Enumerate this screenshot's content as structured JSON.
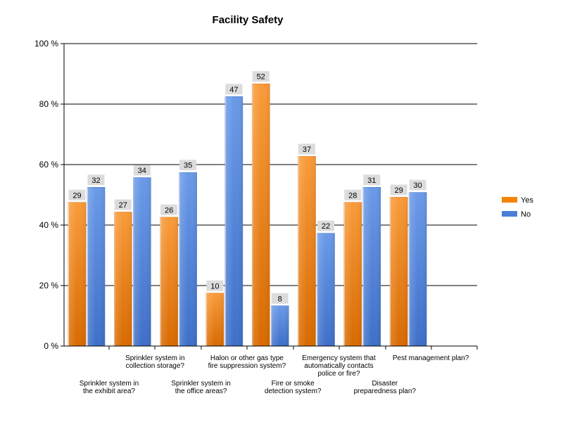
{
  "chart_data": {
    "type": "bar",
    "title": "Facility Safety",
    "xlabel": "",
    "ylabel": "",
    "ylim": [
      0,
      100
    ],
    "y_tick_suffix": " %",
    "y_ticks": [
      0,
      20,
      40,
      60,
      80,
      100
    ],
    "grid": true,
    "legend_position": "right",
    "categories": [
      "Sprinkler system in the exhibit area?",
      "Sprinkler system in collection storage?",
      "Sprinkler system in the office areas?",
      "Halon or other gas type fire suppression system?",
      "Fire or smoke detection system?",
      "Emergency system that automatically contacts police or fire?",
      "Disaster preparedness plan?",
      "Pest management plan?"
    ],
    "category_label_lines": [
      [
        "Sprinkler system in",
        "the exhibit area?"
      ],
      [
        "Sprinkler system in",
        "collection storage?"
      ],
      [
        "Sprinkler system in",
        "the office areas?"
      ],
      [
        "Halon or other gas type",
        "fire suppression system?"
      ],
      [
        "Fire or smoke",
        "detection system?"
      ],
      [
        "Emergency system that",
        "automatically contacts",
        "police or fire?"
      ],
      [
        "Disaster",
        "preparedness plan?"
      ],
      [
        "Pest management plan?"
      ]
    ],
    "series": [
      {
        "name": "Yes",
        "color": "#f58300",
        "color_light": "#f99b3a",
        "color_dark": "#d86a00",
        "values": [
          47.5,
          44.3,
          42.6,
          17.5,
          86.7,
          62.7,
          47.5,
          49.2
        ],
        "counts": [
          29,
          27,
          26,
          10,
          52,
          37,
          28,
          29
        ]
      },
      {
        "name": "No",
        "color": "#4a7fd8",
        "color_light": "#6a9ae8",
        "color_dark": "#3e6fc8",
        "values": [
          52.5,
          55.7,
          57.4,
          82.5,
          13.3,
          37.3,
          52.5,
          50.8
        ],
        "counts": [
          32,
          34,
          35,
          47,
          8,
          22,
          31,
          30
        ]
      }
    ]
  }
}
